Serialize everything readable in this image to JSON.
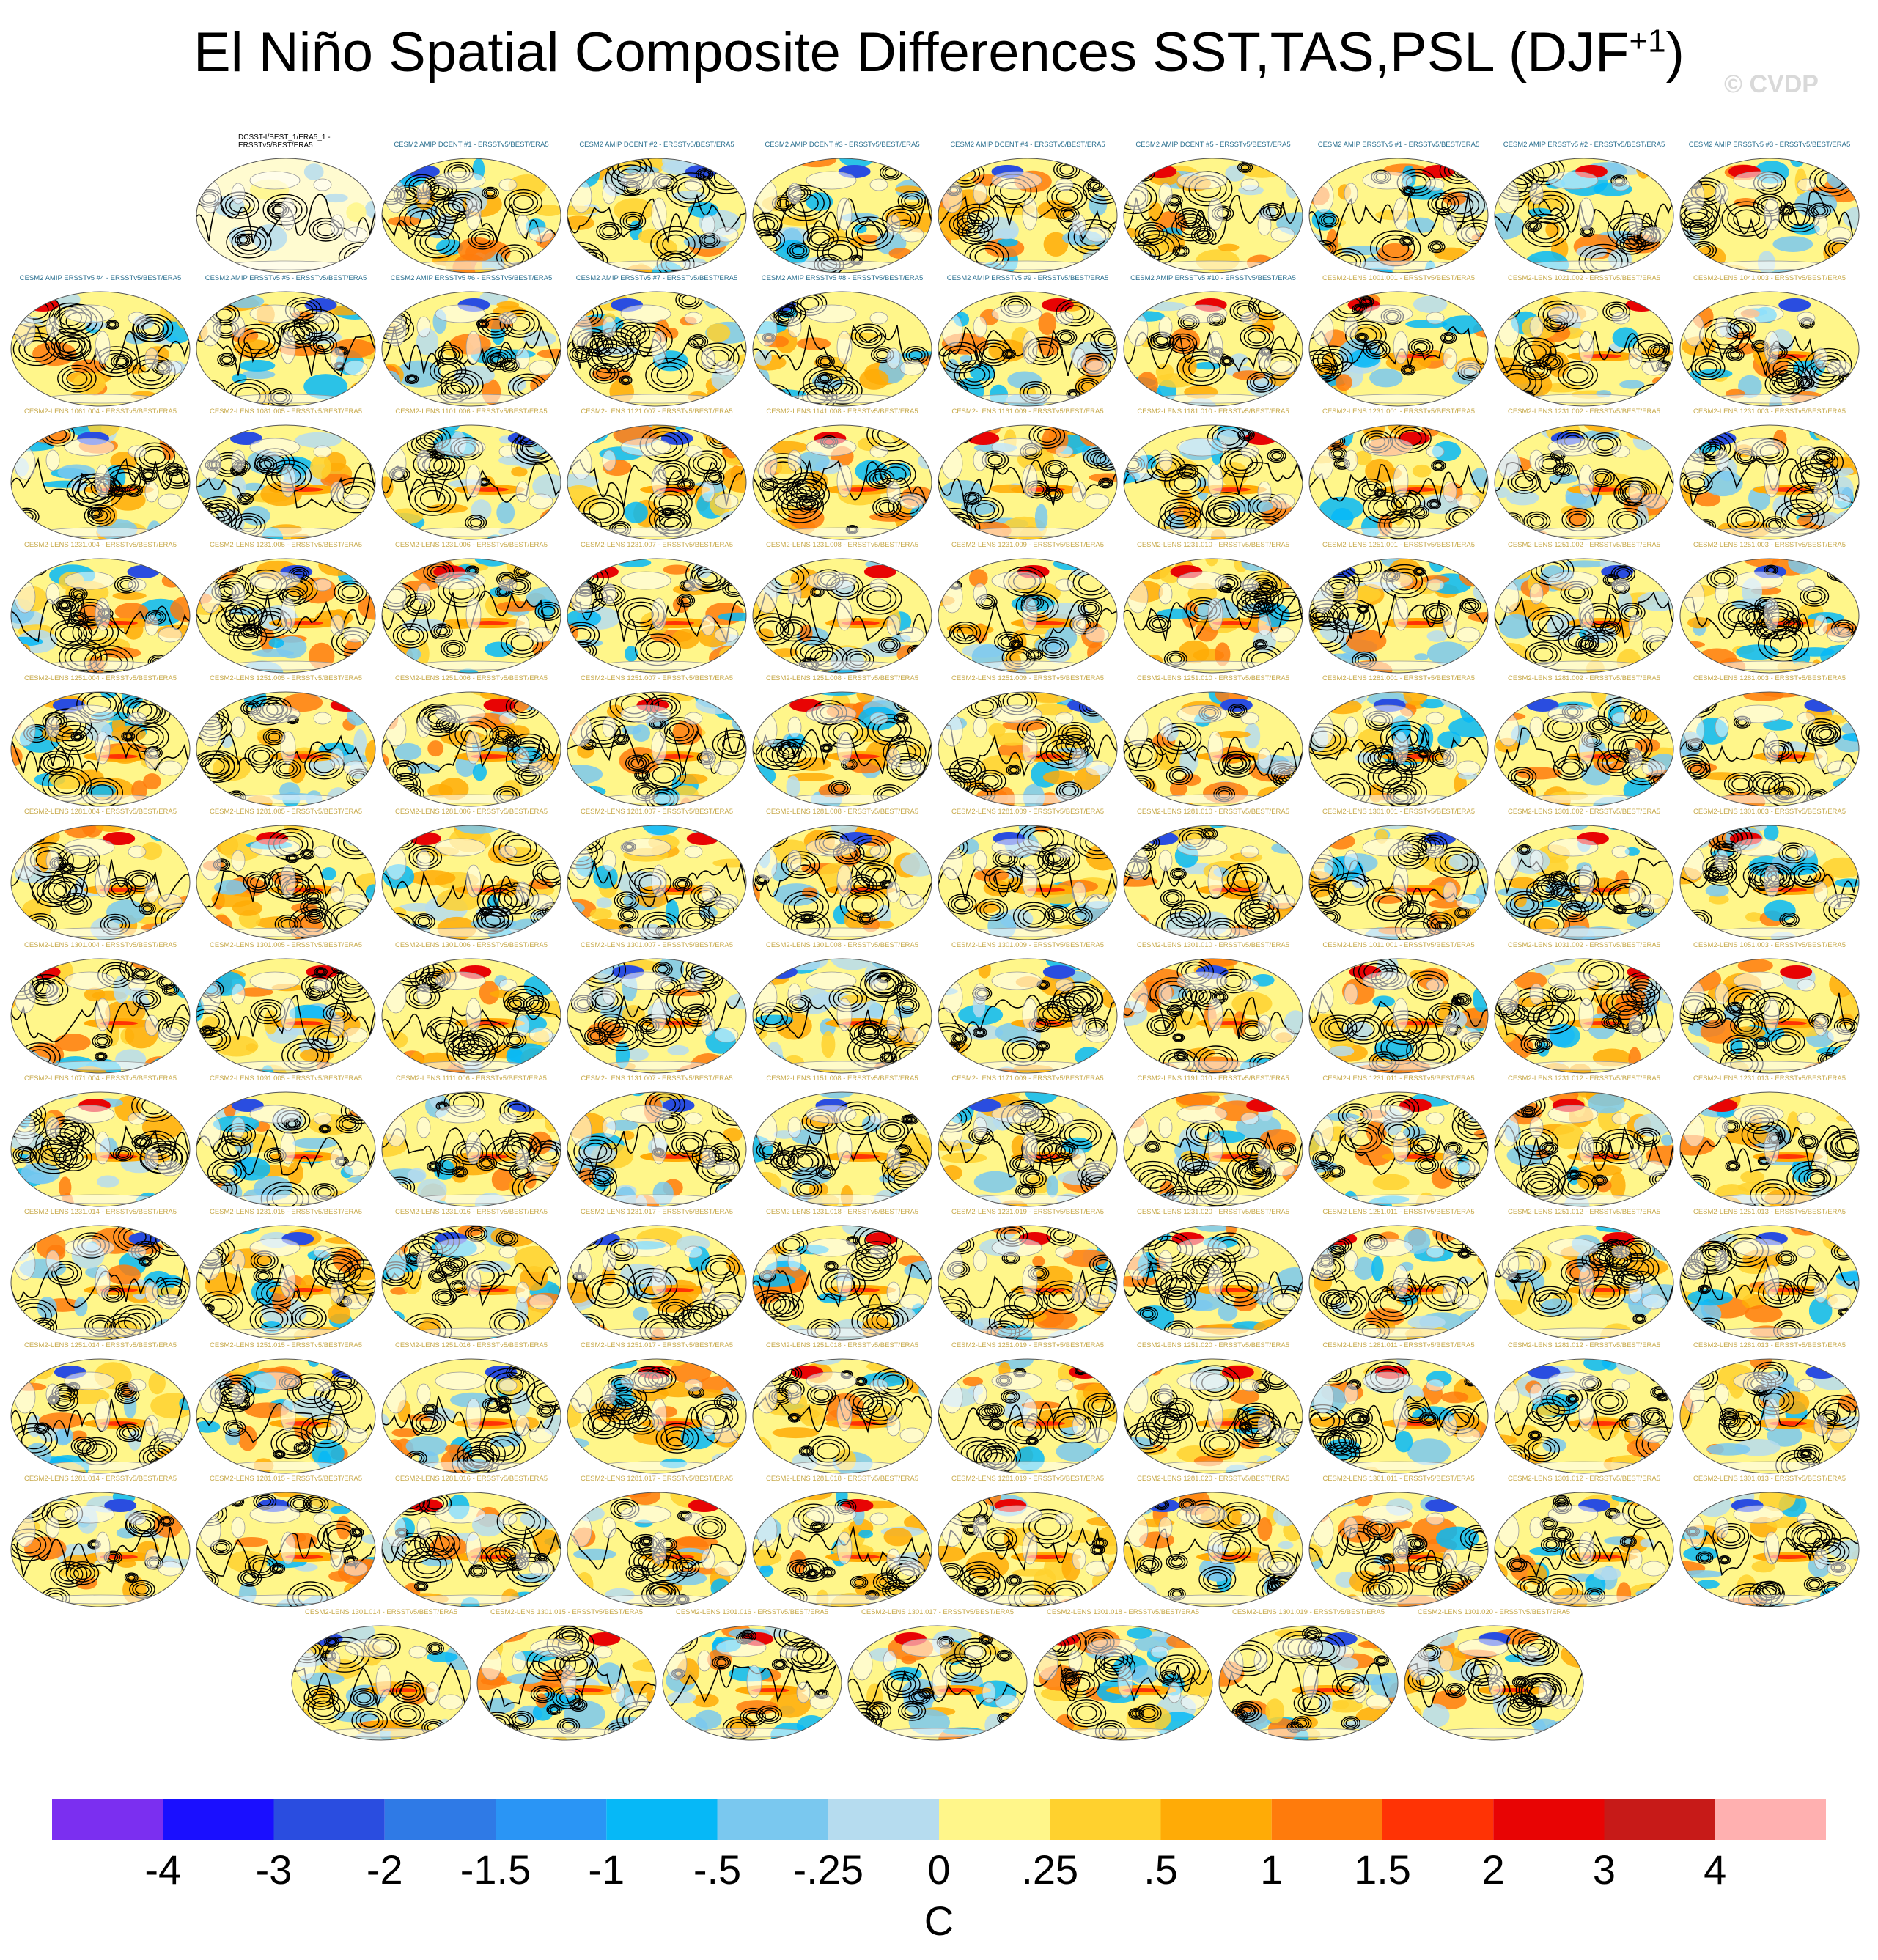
{
  "title": {
    "main": "El Niño Spatial Composite Differences SST,TAS,PSL (DJF",
    "sup": "+1",
    "close": ")"
  },
  "watermark": "© CVDP",
  "panel_titles": [
    "DCSST-I/BEST_1/ERA5_1 - ERSSTv5/BEST/ERA5",
    "CESM2 AMIP DCENT #1 - ERSSTv5/BEST/ERA5",
    "CESM2 AMIP DCENT #2 - ERSSTv5/BEST/ERA5",
    "CESM2 AMIP DCENT #3 - ERSSTv5/BEST/ERA5",
    "CESM2 AMIP DCENT #4 - ERSSTv5/BEST/ERA5",
    "CESM2 AMIP DCENT #5 - ERSSTv5/BEST/ERA5",
    "CESM2 AMIP ERSSTv5 #1 - ERSSTv5/BEST/ERA5",
    "CESM2 AMIP ERSSTv5 #2 - ERSSTv5/BEST/ERA5",
    "CESM2 AMIP ERSSTv5 #3 - ERSSTv5/BEST/ERA5",
    "CESM2 AMIP ERSSTv5 #4 - ERSSTv5/BEST/ERA5",
    "CESM2 AMIP ERSSTv5 #5 - ERSSTv5/BEST/ERA5",
    "CESM2 AMIP ERSSTv5 #6 - ERSSTv5/BEST/ERA5",
    "CESM2 AMIP ERSSTv5 #7 - ERSSTv5/BEST/ERA5",
    "CESM2 AMIP ERSSTv5 #8 - ERSSTv5/BEST/ERA5",
    "CESM2 AMIP ERSSTv5 #9 - ERSSTv5/BEST/ERA5",
    "CESM2 AMIP ERSSTv5 #10 - ERSSTv5/BEST/ERA5",
    "CESM2-LENS 1001.001 - ERSSTv5/BEST/ERA5",
    "CESM2-LENS 1021.002 - ERSSTv5/BEST/ERA5",
    "CESM2-LENS 1041.003 - ERSSTv5/BEST/ERA5",
    "CESM2-LENS 1061.004 - ERSSTv5/BEST/ERA5",
    "CESM2-LENS 1081.005 - ERSSTv5/BEST/ERA5",
    "CESM2-LENS 1101.006 - ERSSTv5/BEST/ERA5",
    "CESM2-LENS 1121.007 - ERSSTv5/BEST/ERA5",
    "CESM2-LENS 1141.008 - ERSSTv5/BEST/ERA5",
    "CESM2-LENS 1161.009 - ERSSTv5/BEST/ERA5",
    "CESM2-LENS 1181.010 - ERSSTv5/BEST/ERA5",
    "CESM2-LENS 1231.001 - ERSSTv5/BEST/ERA5",
    "CESM2-LENS 1231.002 - ERSSTv5/BEST/ERA5",
    "CESM2-LENS 1231.003 - ERSSTv5/BEST/ERA5",
    "CESM2-LENS 1231.004 - ERSSTv5/BEST/ERA5",
    "CESM2-LENS 1231.005 - ERSSTv5/BEST/ERA5",
    "CESM2-LENS 1231.006 - ERSSTv5/BEST/ERA5",
    "CESM2-LENS 1231.007 - ERSSTv5/BEST/ERA5",
    "CESM2-LENS 1231.008 - ERSSTv5/BEST/ERA5",
    "CESM2-LENS 1231.009 - ERSSTv5/BEST/ERA5",
    "CESM2-LENS 1231.010 - ERSSTv5/BEST/ERA5",
    "CESM2-LENS 1251.001 - ERSSTv5/BEST/ERA5",
    "CESM2-LENS 1251.002 - ERSSTv5/BEST/ERA5",
    "CESM2-LENS 1251.003 - ERSSTv5/BEST/ERA5",
    "CESM2-LENS 1251.004 - ERSSTv5/BEST/ERA5",
    "CESM2-LENS 1251.005 - ERSSTv5/BEST/ERA5",
    "CESM2-LENS 1251.006 - ERSSTv5/BEST/ERA5",
    "CESM2-LENS 1251.007 - ERSSTv5/BEST/ERA5",
    "CESM2-LENS 1251.008 - ERSSTv5/BEST/ERA5",
    "CESM2-LENS 1251.009 - ERSSTv5/BEST/ERA5",
    "CESM2-LENS 1251.010 - ERSSTv5/BEST/ERA5",
    "CESM2-LENS 1281.001 - ERSSTv5/BEST/ERA5",
    "CESM2-LENS 1281.002 - ERSSTv5/BEST/ERA5",
    "CESM2-LENS 1281.003 - ERSSTv5/BEST/ERA5",
    "CESM2-LENS 1281.004 - ERSSTv5/BEST/ERA5",
    "CESM2-LENS 1281.005 - ERSSTv5/BEST/ERA5",
    "CESM2-LENS 1281.006 - ERSSTv5/BEST/ERA5",
    "CESM2-LENS 1281.007 - ERSSTv5/BEST/ERA5",
    "CESM2-LENS 1281.008 - ERSSTv5/BEST/ERA5",
    "CESM2-LENS 1281.009 - ERSSTv5/BEST/ERA5",
    "CESM2-LENS 1281.010 - ERSSTv5/BEST/ERA5",
    "CESM2-LENS 1301.001 - ERSSTv5/BEST/ERA5",
    "CESM2-LENS 1301.002 - ERSSTv5/BEST/ERA5",
    "CESM2-LENS 1301.003 - ERSSTv5/BEST/ERA5",
    "CESM2-LENS 1301.004 - ERSSTv5/BEST/ERA5",
    "CESM2-LENS 1301.005 - ERSSTv5/BEST/ERA5",
    "CESM2-LENS 1301.006 - ERSSTv5/BEST/ERA5",
    "CESM2-LENS 1301.007 - ERSSTv5/BEST/ERA5",
    "CESM2-LENS 1301.008 - ERSSTv5/BEST/ERA5",
    "CESM2-LENS 1301.009 - ERSSTv5/BEST/ERA5",
    "CESM2-LENS 1301.010 - ERSSTv5/BEST/ERA5",
    "CESM2-LENS 1011.001 - ERSSTv5/BEST/ERA5",
    "CESM2-LENS 1031.002 - ERSSTv5/BEST/ERA5",
    "CESM2-LENS 1051.003 - ERSSTv5/BEST/ERA5",
    "CESM2-LENS 1071.004 - ERSSTv5/BEST/ERA5",
    "CESM2-LENS 1091.005 - ERSSTv5/BEST/ERA5",
    "CESM2-LENS 1111.006 - ERSSTv5/BEST/ERA5",
    "CESM2-LENS 1131.007 - ERSSTv5/BEST/ERA5",
    "CESM2-LENS 1151.008 - ERSSTv5/BEST/ERA5",
    "CESM2-LENS 1171.009 - ERSSTv5/BEST/ERA5",
    "CESM2-LENS 1191.010 - ERSSTv5/BEST/ERA5",
    "CESM2-LENS 1231.011 - ERSSTv5/BEST/ERA5",
    "CESM2-LENS 1231.012 - ERSSTv5/BEST/ERA5",
    "CESM2-LENS 1231.013 - ERSSTv5/BEST/ERA5",
    "CESM2-LENS 1231.014 - ERSSTv5/BEST/ERA5",
    "CESM2-LENS 1231.015 - ERSSTv5/BEST/ERA5",
    "CESM2-LENS 1231.016 - ERSSTv5/BEST/ERA5",
    "CESM2-LENS 1231.017 - ERSSTv5/BEST/ERA5",
    "CESM2-LENS 1231.018 - ERSSTv5/BEST/ERA5",
    "CESM2-LENS 1231.019 - ERSSTv5/BEST/ERA5",
    "CESM2-LENS 1231.020 - ERSSTv5/BEST/ERA5",
    "CESM2-LENS 1251.011 - ERSSTv5/BEST/ERA5",
    "CESM2-LENS 1251.012 - ERSSTv5/BEST/ERA5",
    "CESM2-LENS 1251.013 - ERSSTv5/BEST/ERA5",
    "CESM2-LENS 1251.014 - ERSSTv5/BEST/ERA5",
    "CESM2-LENS 1251.015 - ERSSTv5/BEST/ERA5",
    "CESM2-LENS 1251.016 - ERSSTv5/BEST/ERA5",
    "CESM2-LENS 1251.017 - ERSSTv5/BEST/ERA5",
    "CESM2-LENS 1251.018 - ERSSTv5/BEST/ERA5",
    "CESM2-LENS 1251.019 - ERSSTv5/BEST/ERA5",
    "CESM2-LENS 1251.020 - ERSSTv5/BEST/ERA5",
    "CESM2-LENS 1281.011 - ERSSTv5/BEST/ERA5",
    "CESM2-LENS 1281.012 - ERSSTv5/BEST/ERA5",
    "CESM2-LENS 1281.013 - ERSSTv5/BEST/ERA5",
    "CESM2-LENS 1281.014 - ERSSTv5/BEST/ERA5",
    "CESM2-LENS 1281.015 - ERSSTv5/BEST/ERA5",
    "CESM2-LENS 1281.016 - ERSSTv5/BEST/ERA5",
    "CESM2-LENS 1281.017 - ERSSTv5/BEST/ERA5",
    "CESM2-LENS 1281.018 - ERSSTv5/BEST/ERA5",
    "CESM2-LENS 1281.019 - ERSSTv5/BEST/ERA5",
    "CESM2-LENS 1281.020 - ERSSTv5/BEST/ERA5",
    "CESM2-LENS 1301.011 - ERSSTv5/BEST/ERA5",
    "CESM2-LENS 1301.012 - ERSSTv5/BEST/ERA5",
    "CESM2-LENS 1301.013 - ERSSTv5/BEST/ERA5",
    "CESM2-LENS 1301.014 - ERSSTv5/BEST/ERA5",
    "CESM2-LENS 1301.015 - ERSSTv5/BEST/ERA5",
    "CESM2-LENS 1301.016 - ERSSTv5/BEST/ERA5",
    "CESM2-LENS 1301.017 - ERSSTv5/BEST/ERA5",
    "CESM2-LENS 1301.018 - ERSSTv5/BEST/ERA5",
    "CESM2-LENS 1301.019 - ERSSTv5/BEST/ERA5",
    "CESM2-LENS 1301.020 - ERSSTv5/BEST/ERA5"
  ],
  "colors": {
    "obs_title": "#000000",
    "amip_title": "#2a6f8f",
    "lens_title": "#c7a94a",
    "land": "#ffffff",
    "contour": "#000000"
  },
  "chart_data": {
    "type": "heatmap",
    "colorbar": {
      "colors": [
        "#7b2ff0",
        "#1a0fff",
        "#2a4de0",
        "#2f7ae6",
        "#2a95f5",
        "#06b8f7",
        "#7ac8ef",
        "#b6dcef",
        "#fff68a",
        "#ffd12e",
        "#ffab06",
        "#ff7b0c",
        "#ff3305",
        "#e80404",
        "#c71a18",
        "#ffb0b0"
      ],
      "tick_labels": [
        "-4",
        "-3",
        "-2",
        "-1.5",
        "-1",
        "-.5",
        "-.25",
        "0",
        ".25",
        ".5",
        "1",
        "1.5",
        "2",
        "3",
        "4"
      ],
      "unit": "C"
    }
  }
}
